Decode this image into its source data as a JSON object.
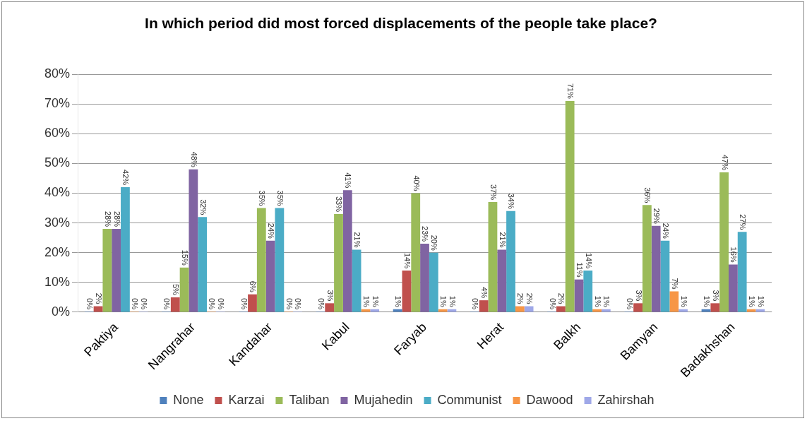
{
  "chart_data": {
    "type": "bar",
    "title": "In which period did most forced displacements of the people take place?",
    "categories": [
      "Paktiya",
      "Nangrahar",
      "Kandahar",
      "Kabul",
      "Faryab",
      "Herat",
      "Balkh",
      "Bamyan",
      "Badakhshan"
    ],
    "series": [
      {
        "name": "None",
        "color": "#4f81bd",
        "values": [
          0,
          0,
          0,
          0,
          1,
          0,
          0,
          0,
          1
        ],
        "value_labels": [
          "0%",
          "0%",
          "0%",
          "0%",
          "1%",
          "0%",
          "0%",
          "0%",
          "1%"
        ]
      },
      {
        "name": "Karzai",
        "color": "#c0504d",
        "values": [
          2,
          5,
          6,
          3,
          14,
          4,
          2,
          3,
          3
        ],
        "value_labels": [
          "2%",
          "5%",
          "6%",
          "3%",
          "14%",
          "4%",
          "2%",
          "3%",
          "3%"
        ]
      },
      {
        "name": "Taliban",
        "color": "#9bbb59",
        "values": [
          28,
          15,
          35,
          33,
          40,
          37,
          71,
          36,
          47
        ],
        "value_labels": [
          "28%",
          "15%",
          "35%",
          "33%",
          "40%",
          "37%",
          "71%",
          "36%",
          "47%"
        ]
      },
      {
        "name": "Mujahedin",
        "color": "#8064a2",
        "values": [
          28,
          48,
          24,
          41,
          23,
          21,
          11,
          29,
          16
        ],
        "value_labels": [
          "28%",
          "48%",
          "24%",
          "41%",
          "23%",
          "21%",
          "11%",
          "29%",
          "16%"
        ]
      },
      {
        "name": "Communist",
        "color": "#4bacc6",
        "values": [
          42,
          32,
          35,
          21,
          20,
          34,
          14,
          24,
          27
        ],
        "value_labels": [
          "42%",
          "32%",
          "35%",
          "21%",
          "20%",
          "34%",
          "14%",
          "24%",
          "27%"
        ]
      },
      {
        "name": "Dawood",
        "color": "#f79646",
        "values": [
          0,
          0,
          0,
          1,
          1,
          2,
          1,
          7,
          1
        ],
        "value_labels": [
          "0%",
          "0%",
          "0%",
          "1%",
          "1%",
          "2%",
          "1%",
          "7%",
          "1%"
        ]
      },
      {
        "name": "Zahirshah",
        "color": "#9fa8e8",
        "values": [
          0,
          0,
          0,
          1,
          1,
          2,
          1,
          1,
          1
        ],
        "value_labels": [
          "0%",
          "0%",
          "0%",
          "1%",
          "1%",
          "2%",
          "1%",
          "1%",
          "1%"
        ]
      }
    ],
    "ylim": [
      0,
      80
    ],
    "yticks": [
      {
        "value": 0,
        "label": "0%"
      },
      {
        "value": 10,
        "label": "10%"
      },
      {
        "value": 20,
        "label": "20%"
      },
      {
        "value": 30,
        "label": "30%"
      },
      {
        "value": 40,
        "label": "40%"
      },
      {
        "value": 50,
        "label": "50%"
      },
      {
        "value": 60,
        "label": "60%"
      },
      {
        "value": 70,
        "label": "70%"
      },
      {
        "value": 80,
        "label": "80%"
      }
    ],
    "grid": "y",
    "legend": "bottom"
  }
}
